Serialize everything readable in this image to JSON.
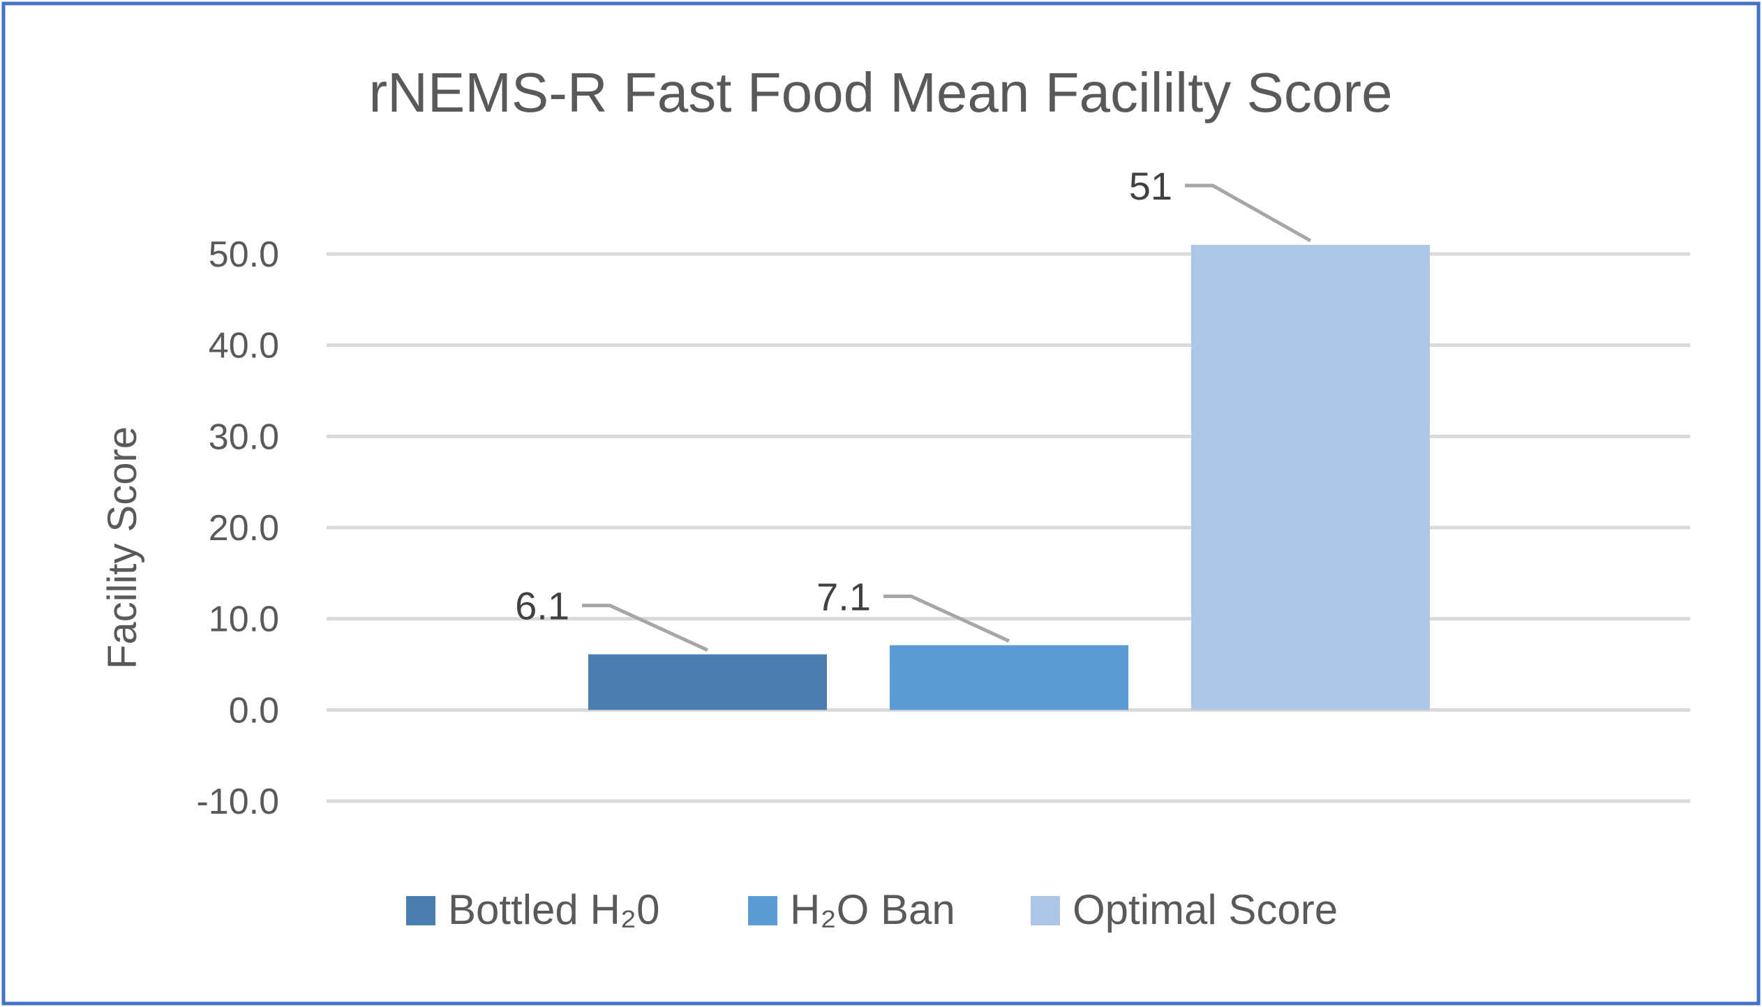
{
  "chart_data": {
    "type": "bar",
    "title": "rNEMS-R Fast Food Mean Facililty Score",
    "xlabel": "",
    "ylabel": "Facility Score",
    "ylim": [
      -10,
      50
    ],
    "yticks": [
      "50.0",
      "40.0",
      "30.0",
      "20.0",
      "10.0",
      "0.0",
      "-10.0"
    ],
    "ytick_values": [
      50,
      40,
      30,
      20,
      10,
      0,
      -10
    ],
    "grid": true,
    "legend_position": "bottom",
    "series": [
      {
        "name": "Bottled H₂0",
        "values": [
          6.1
        ],
        "label": "6.1",
        "color": "#4a7eb0"
      },
      {
        "name": "H₂O Ban",
        "values": [
          7.1
        ],
        "label": "7.1",
        "color": "#5b9bd5"
      },
      {
        "name": "Optimal Score",
        "values": [
          51
        ],
        "label": "51",
        "color": "#adc6e5"
      }
    ]
  },
  "colors": {
    "border": "#4472c4",
    "grid": "#d9d9d9",
    "text": "#595959"
  }
}
